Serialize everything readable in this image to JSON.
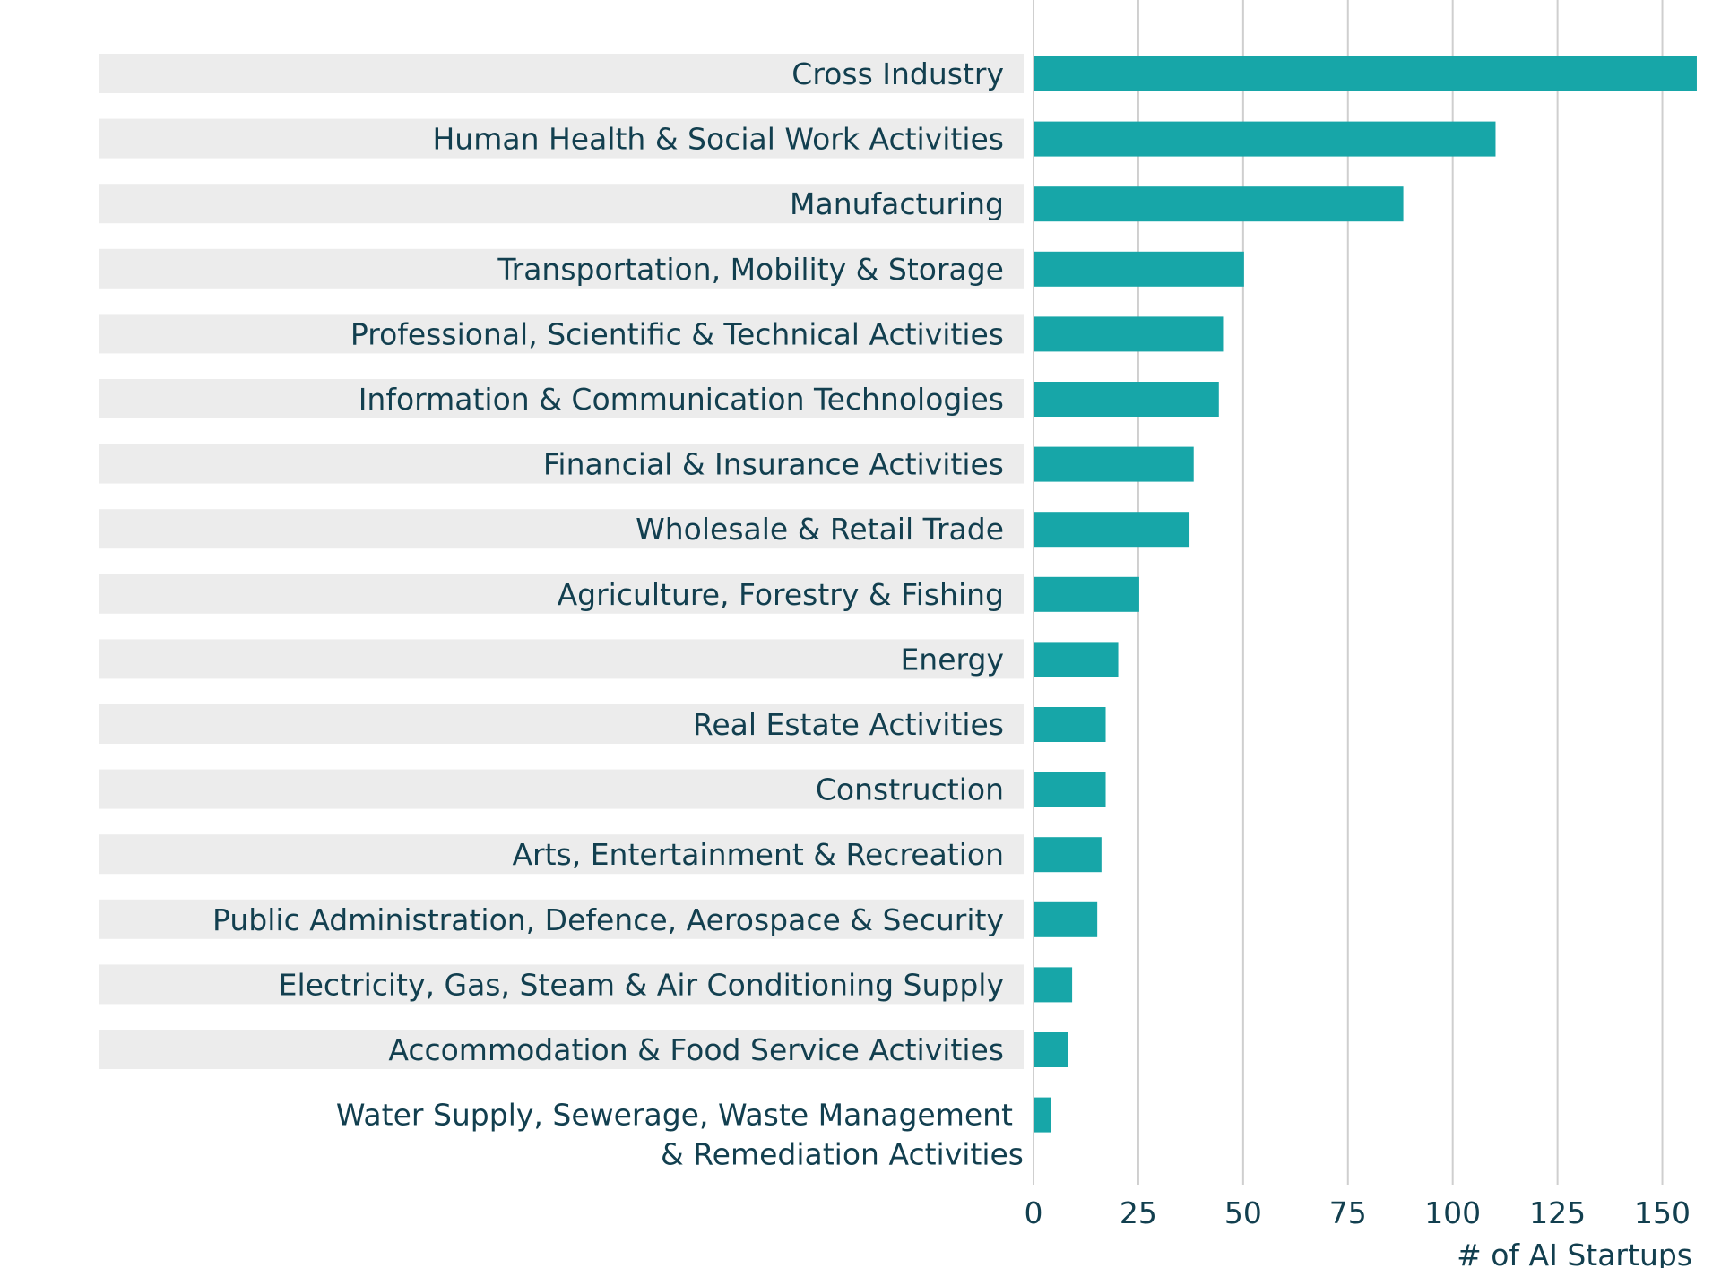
{
  "chart_data": {
    "type": "bar",
    "orientation": "horizontal",
    "title": "",
    "xlabel": "# of AI Startups",
    "ylabel": "",
    "xlim": [
      0,
      158
    ],
    "xticks": [
      0,
      25,
      50,
      75,
      100,
      125,
      150
    ],
    "grid": "vertical",
    "categories": [
      "Cross Industry",
      "Human Health & Social Work Activities",
      "Manufacturing",
      "Transportation, Mobility & Storage",
      "Professional, Scientific & Technical Activities",
      "Information & Communication Technologies",
      "Financial & Insurance Activities",
      "Wholesale & Retail Trade",
      "Agriculture, Forestry & Fishing",
      "Energy",
      "Real Estate Activities",
      "Construction",
      "Arts, Entertainment & Recreation",
      "Public Administration, Defence, Aerospace & Security",
      "Electricity, Gas, Steam & Air Conditioning Supply",
      "Accommodation & Food Service Activities",
      "Water Supply, Sewerage, Waste Management\n& Remediation Activities"
    ],
    "values": [
      158,
      110,
      88,
      50,
      45,
      44,
      38,
      37,
      25,
      20,
      17,
      17,
      16,
      15,
      9,
      8,
      4
    ],
    "colors": {
      "bar": "#17a6a8",
      "band": "#ececec",
      "grid": "#cfcfcf",
      "text": "#123f4f"
    }
  }
}
